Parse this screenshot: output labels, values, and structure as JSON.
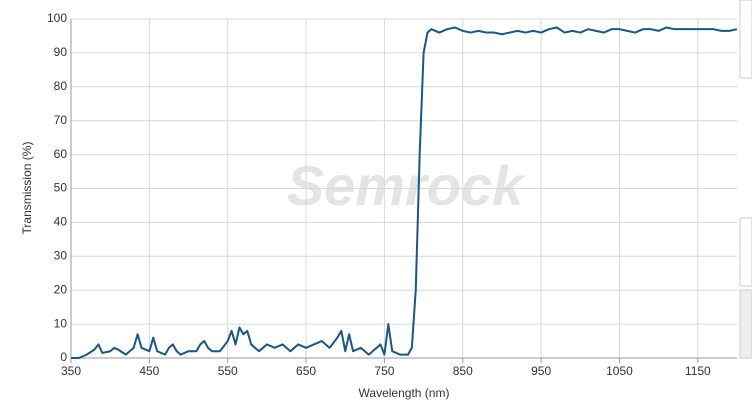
{
  "chart_data": {
    "type": "line",
    "watermark": "Semrock",
    "x_label": "Wavelength (nm)",
    "y_label": "Transmission (%)",
    "x": [
      350,
      360,
      370,
      380,
      385,
      390,
      400,
      405,
      410,
      420,
      430,
      435,
      440,
      450,
      455,
      460,
      470,
      475,
      480,
      485,
      490,
      500,
      510,
      515,
      520,
      525,
      530,
      540,
      550,
      555,
      560,
      565,
      570,
      575,
      580,
      585,
      590,
      600,
      610,
      620,
      630,
      640,
      650,
      660,
      670,
      680,
      690,
      695,
      700,
      705,
      710,
      720,
      730,
      740,
      745,
      750,
      755,
      760,
      770,
      780,
      785,
      790,
      795,
      800,
      805,
      810,
      820,
      830,
      840,
      850,
      860,
      870,
      880,
      890,
      900,
      910,
      920,
      930,
      940,
      950,
      960,
      970,
      980,
      990,
      1000,
      1010,
      1020,
      1030,
      1040,
      1050,
      1060,
      1070,
      1080,
      1090,
      1100,
      1110,
      1120,
      1130,
      1140,
      1150,
      1160,
      1170,
      1180,
      1190,
      1200
    ],
    "series": [
      {
        "name": "Transmission",
        "color": "#1b5686",
        "values": [
          0,
          0,
          1,
          2.5,
          4,
          1.5,
          2,
          3,
          2.5,
          1,
          3,
          7,
          3,
          2,
          6,
          2,
          1,
          3,
          4,
          2,
          1,
          2,
          2,
          4,
          5,
          3,
          2,
          2,
          5,
          8,
          4,
          9,
          7,
          8,
          4,
          3,
          2,
          4,
          3,
          4,
          2,
          4,
          3,
          4,
          5,
          3,
          6,
          8,
          2,
          7,
          2,
          3,
          1,
          3,
          4,
          1,
          10,
          2,
          1,
          1,
          3,
          20,
          60,
          90,
          96,
          97,
          96,
          97,
          97.5,
          96.5,
          96,
          96.5,
          96,
          96,
          95.5,
          96,
          96.5,
          96,
          96.5,
          96,
          97,
          97.5,
          96,
          96.5,
          96,
          97,
          96.5,
          96,
          97,
          97,
          96.5,
          96,
          97,
          97,
          96.5,
          97.5,
          97,
          97,
          97,
          97,
          97,
          97,
          96.5,
          96.5,
          97
        ]
      }
    ],
    "xlim": [
      350,
      1200
    ],
    "ylim": [
      0,
      100
    ],
    "xticks": [
      350,
      450,
      550,
      650,
      750,
      850,
      950,
      1050,
      1150
    ],
    "yticks": [
      0,
      10,
      20,
      30,
      40,
      50,
      60,
      70,
      80,
      90,
      100
    ],
    "grid": true
  }
}
